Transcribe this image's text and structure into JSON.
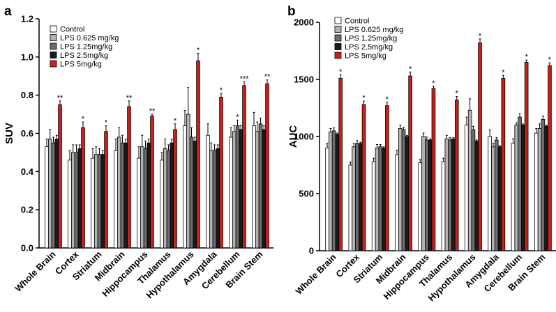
{
  "chart_data": [
    {
      "panel": "a",
      "type": "bar",
      "ylabel": "SUV",
      "xlabel": "",
      "ylim": [
        0,
        1.2
      ],
      "ytick_labels": [
        "0.0",
        "0.2",
        "0.4",
        "0.6",
        "0.8",
        "1.0",
        "1.2"
      ],
      "yticks": [
        0,
        0.2,
        0.4,
        0.6,
        0.8,
        1.0,
        1.2
      ],
      "categories": [
        "Whole Brain",
        "Cortex",
        "Striatum",
        "Midbrain",
        "Hippocampus",
        "Thalamus",
        "Hypothalamus",
        "Amygdala",
        "Cerebellum",
        "Brain Stem"
      ],
      "legend_position": "top-left",
      "series": [
        {
          "name": "Control",
          "color": "#ffffff",
          "values": [
            0.53,
            0.46,
            0.47,
            0.51,
            0.47,
            0.46,
            0.64,
            0.59,
            0.58,
            0.64
          ],
          "errors": [
            0.04,
            0.05,
            0.05,
            0.06,
            0.06,
            0.04,
            0.08,
            0.06,
            0.05,
            0.07
          ]
        },
        {
          "name": "LPS 0.625 mg/kg",
          "color": "#b3b3b3",
          "values": [
            0.57,
            0.5,
            0.49,
            0.58,
            0.53,
            0.52,
            0.7,
            0.51,
            0.61,
            0.61
          ],
          "errors": [
            0.05,
            0.04,
            0.04,
            0.05,
            0.06,
            0.05,
            0.14,
            0.04,
            0.03,
            0.05
          ]
        },
        {
          "name": "LPS 1.25mg/kg",
          "color": "#6e6e6e",
          "values": [
            0.55,
            0.5,
            0.49,
            0.55,
            0.52,
            0.51,
            0.58,
            0.51,
            0.64,
            0.65
          ],
          "errors": [
            0.03,
            0.04,
            0.03,
            0.04,
            0.04,
            0.03,
            0.05,
            0.03,
            0.03,
            0.03
          ]
        },
        {
          "name": "LPS 2.5mg/kg",
          "color": "#1a1a1a",
          "values": [
            0.57,
            0.52,
            0.49,
            0.55,
            0.55,
            0.55,
            0.56,
            0.52,
            0.62,
            0.62
          ],
          "errors": [
            0.02,
            0.02,
            0.02,
            0.02,
            0.02,
            0.02,
            0.02,
            0.02,
            0.02,
            0.02
          ]
        },
        {
          "name": "LPS 5mg/kg",
          "color": "#cc1f1a",
          "values": [
            0.75,
            0.63,
            0.61,
            0.74,
            0.69,
            0.62,
            0.98,
            0.79,
            0.85,
            0.86
          ],
          "errors": [
            0.02,
            0.03,
            0.03,
            0.03,
            0.01,
            0.03,
            0.04,
            0.02,
            0.02,
            0.02
          ]
        }
      ],
      "significance": [
        {
          "category": "Whole Brain",
          "series": "LPS 5mg/kg",
          "mark": "**"
        },
        {
          "category": "Cortex",
          "series": "LPS 5mg/kg",
          "mark": "*"
        },
        {
          "category": "Striatum",
          "series": "LPS 5mg/kg",
          "mark": "*"
        },
        {
          "category": "Midbrain",
          "series": "LPS 5mg/kg",
          "mark": "**"
        },
        {
          "category": "Hippocampus",
          "series": "LPS 5mg/kg",
          "mark": "**"
        },
        {
          "category": "Thalamus",
          "series": "LPS 5mg/kg",
          "mark": "*"
        },
        {
          "category": "Hypothalamus",
          "series": "LPS 5mg/kg",
          "mark": "*"
        },
        {
          "category": "Amygdala",
          "series": "LPS 5mg/kg",
          "mark": "*"
        },
        {
          "category": "Cerebellum",
          "series": "LPS 1.25mg/kg",
          "mark": "*"
        },
        {
          "category": "Cerebellum",
          "series": "LPS 5mg/kg",
          "mark": "***"
        },
        {
          "category": "Brain Stem",
          "series": "LPS 5mg/kg",
          "mark": "**"
        }
      ]
    },
    {
      "panel": "b",
      "type": "bar",
      "ylabel": "AUC",
      "xlabel": "",
      "ylim": [
        0,
        2000
      ],
      "ytick_labels": [
        "0",
        "500",
        "1000",
        "1500",
        "2000"
      ],
      "yticks": [
        0,
        500,
        1000,
        1500,
        2000
      ],
      "categories": [
        "Whole Brain",
        "Cortex",
        "Striatum",
        "Midbrain",
        "Hippocampus",
        "Thalamus",
        "Hypothalamus",
        "Amygdala",
        "Cerebellum",
        "Brain Stem"
      ],
      "legend_position": "top-left",
      "series": [
        {
          "name": "Control",
          "color": "#ffffff",
          "values": [
            900,
            750,
            780,
            840,
            770,
            780,
            1100,
            1000,
            940,
            1030
          ],
          "errors": [
            40,
            25,
            30,
            40,
            30,
            30,
            70,
            60,
            40,
            40
          ]
        },
        {
          "name": "LPS 0.625 mg/kg",
          "color": "#b3b3b3",
          "values": [
            1040,
            910,
            900,
            1070,
            1000,
            980,
            1230,
            910,
            1100,
            1070
          ],
          "errors": [
            30,
            30,
            30,
            30,
            30,
            30,
            100,
            30,
            20,
            40
          ]
        },
        {
          "name": "LPS 1.25mg/kg",
          "color": "#6e6e6e",
          "values": [
            1050,
            940,
            910,
            1060,
            970,
            970,
            1060,
            970,
            1170,
            1150
          ],
          "errors": [
            25,
            25,
            20,
            20,
            25,
            20,
            30,
            20,
            30,
            30
          ]
        },
        {
          "name": "LPS 2.5mg/kg",
          "color": "#1a1a1a",
          "values": [
            1020,
            940,
            900,
            1000,
            970,
            980,
            960,
            910,
            1100,
            1090
          ],
          "errors": [
            10,
            10,
            10,
            10,
            10,
            10,
            10,
            10,
            10,
            10
          ]
        },
        {
          "name": "LPS 5mg/kg",
          "color": "#cc1f1a",
          "values": [
            1510,
            1280,
            1270,
            1530,
            1420,
            1320,
            1820,
            1510,
            1650,
            1620
          ],
          "errors": [
            30,
            30,
            30,
            35,
            20,
            30,
            35,
            25,
            20,
            25
          ]
        }
      ],
      "significance": [
        {
          "category": "Whole Brain",
          "series": "LPS 5mg/kg",
          "mark": "*"
        },
        {
          "category": "Cortex",
          "series": "LPS 5mg/kg",
          "mark": "*"
        },
        {
          "category": "Striatum",
          "series": "LPS 5mg/kg",
          "mark": "*"
        },
        {
          "category": "Midbrain",
          "series": "LPS 5mg/kg",
          "mark": "*"
        },
        {
          "category": "Hippocampus",
          "series": "LPS 5mg/kg",
          "mark": "*"
        },
        {
          "category": "Thalamus",
          "series": "LPS 5mg/kg",
          "mark": "*"
        },
        {
          "category": "Hypothalamus",
          "series": "LPS 5mg/kg",
          "mark": "*"
        },
        {
          "category": "Amygdala",
          "series": "LPS 5mg/kg",
          "mark": "*"
        },
        {
          "category": "Cerebellum",
          "series": "LPS 5mg/kg",
          "mark": "*"
        },
        {
          "category": "Brain Stem",
          "series": "LPS 5mg/kg",
          "mark": "*"
        }
      ]
    }
  ]
}
